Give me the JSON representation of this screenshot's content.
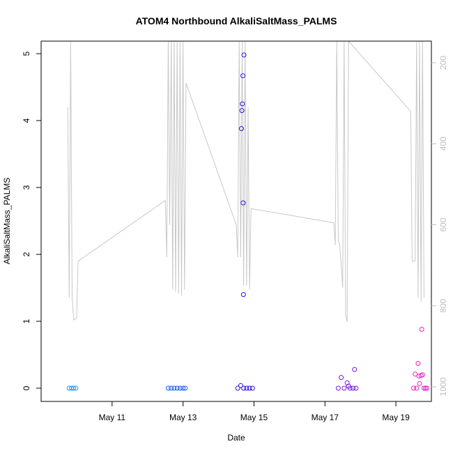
{
  "chart_data": {
    "type": "scatter",
    "title": "ATOM4 Northbound AlkaliSaltMass_PALMS",
    "xlabel": "Date",
    "ylabel": "AlkaliSaltMass_PALMS",
    "xlim": [
      "2017-05-09",
      "2017-05-20"
    ],
    "ylim": [
      0,
      5
    ],
    "x_ticks": [
      {
        "date": "2017-05-11",
        "label": "May 11"
      },
      {
        "date": "2017-05-13",
        "label": "May 13"
      },
      {
        "date": "2017-05-15",
        "label": "May 15"
      },
      {
        "date": "2017-05-17",
        "label": "May 17"
      },
      {
        "date": "2017-05-19",
        "label": "May 19"
      }
    ],
    "y_ticks": [
      0,
      1,
      2,
      3,
      4,
      5
    ],
    "y2_ticks": [
      200,
      400,
      600,
      800,
      1000
    ],
    "y2_reversed": true,
    "y2_color": "#bdbdbd",
    "marker": "open-circle",
    "series": [
      {
        "color": "#1e9bf0",
        "points": [
          {
            "t": "2017-05-09T19:00",
            "y": 0
          },
          {
            "t": "2017-05-09T20:30",
            "y": 0
          },
          {
            "t": "2017-05-09T22:00",
            "y": 0
          },
          {
            "t": "2017-05-09T23:30",
            "y": 0
          }
        ]
      },
      {
        "color": "#1a5cf5",
        "points": [
          {
            "t": "2017-05-12T14:00",
            "y": 0
          },
          {
            "t": "2017-05-12T16:00",
            "y": 0
          },
          {
            "t": "2017-05-12T18:00",
            "y": 0
          },
          {
            "t": "2017-05-12T20:00",
            "y": 0
          },
          {
            "t": "2017-05-12T22:00",
            "y": 0
          },
          {
            "t": "2017-05-13T00:00",
            "y": 0
          },
          {
            "t": "2017-05-13T01:30",
            "y": 0
          }
        ]
      },
      {
        "color": "#2f10e6",
        "points": [
          {
            "t": "2017-05-14T13:00",
            "y": 0
          },
          {
            "t": "2017-05-14T15:00",
            "y": 0.04
          },
          {
            "t": "2017-05-14T17:00",
            "y": 0
          },
          {
            "t": "2017-05-14T19:00",
            "y": 0
          },
          {
            "t": "2017-05-14T21:00",
            "y": 0
          },
          {
            "t": "2017-05-14T23:00",
            "y": 0
          },
          {
            "t": "2017-05-14T15:30",
            "y": 3.88
          },
          {
            "t": "2017-05-14T15:50",
            "y": 4.15
          },
          {
            "t": "2017-05-14T16:10",
            "y": 4.25
          },
          {
            "t": "2017-05-14T16:30",
            "y": 4.67
          },
          {
            "t": "2017-05-14T16:40",
            "y": 2.77
          },
          {
            "t": "2017-05-14T17:10",
            "y": 4.98
          },
          {
            "t": "2017-05-14T16:50",
            "y": 1.4
          }
        ]
      },
      {
        "color": "#7a18d8",
        "points": [
          {
            "t": "2017-05-17T09:00",
            "y": 0
          },
          {
            "t": "2017-05-17T11:00",
            "y": 0.16
          },
          {
            "t": "2017-05-17T13:00",
            "y": 0
          },
          {
            "t": "2017-05-17T15:00",
            "y": 0.08
          },
          {
            "t": "2017-05-17T16:00",
            "y": 0.03
          },
          {
            "t": "2017-05-17T17:00",
            "y": 0
          },
          {
            "t": "2017-05-17T19:00",
            "y": 0
          },
          {
            "t": "2017-05-17T20:00",
            "y": 0.28
          },
          {
            "t": "2017-05-17T21:00",
            "y": 0
          }
        ]
      },
      {
        "color": "#e81ec8",
        "points": [
          {
            "t": "2017-05-19T12:00",
            "y": 0
          },
          {
            "t": "2017-05-19T13:00",
            "y": 0.21
          },
          {
            "t": "2017-05-19T14:00",
            "y": 0
          },
          {
            "t": "2017-05-19T15:00",
            "y": 0.37
          },
          {
            "t": "2017-05-19T15:30",
            "y": 0.18
          },
          {
            "t": "2017-05-19T16:00",
            "y": 0.07
          },
          {
            "t": "2017-05-19T17:00",
            "y": 0.19
          },
          {
            "t": "2017-05-19T17:30",
            "y": 0.88
          },
          {
            "t": "2017-05-19T18:00",
            "y": 0.2
          },
          {
            "t": "2017-05-19T19:00",
            "y": 0
          },
          {
            "t": "2017-05-19T20:00",
            "y": 0
          },
          {
            "t": "2017-05-19T21:00",
            "y": 0
          }
        ]
      }
    ],
    "altitude_line": {
      "color": "#c8c8c8",
      "axis": "right",
      "points": [
        {
          "t": "2017-05-09T18:00",
          "y": 310
        },
        {
          "t": "2017-05-09T19:00",
          "y": 780
        },
        {
          "t": "2017-05-09T20:00",
          "y": 20
        },
        {
          "t": "2017-05-09T21:00",
          "y": 780
        },
        {
          "t": "2017-05-09T22:00",
          "y": 835
        },
        {
          "t": "2017-05-10T00:00",
          "y": 830
        },
        {
          "t": "2017-05-10T01:00",
          "y": 690
        },
        {
          "t": "2017-05-12T12:00",
          "y": 540
        },
        {
          "t": "2017-05-12T13:00",
          "y": 680
        },
        {
          "t": "2017-05-12T14:00",
          "y": 0
        },
        {
          "t": "2017-05-12T15:00",
          "y": 600
        },
        {
          "t": "2017-05-12T16:00",
          "y": 0
        },
        {
          "t": "2017-05-12T17:00",
          "y": 760
        },
        {
          "t": "2017-05-12T18:00",
          "y": 0
        },
        {
          "t": "2017-05-12T19:00",
          "y": 765
        },
        {
          "t": "2017-05-12T20:00",
          "y": 0
        },
        {
          "t": "2017-05-12T21:00",
          "y": 770
        },
        {
          "t": "2017-05-12T22:00",
          "y": 0
        },
        {
          "t": "2017-05-12T23:00",
          "y": 775
        },
        {
          "t": "2017-05-13T00:00",
          "y": 0
        },
        {
          "t": "2017-05-13T01:00",
          "y": 760
        },
        {
          "t": "2017-05-13T02:00",
          "y": 250
        },
        {
          "t": "2017-05-14T12:00",
          "y": 600
        },
        {
          "t": "2017-05-14T13:00",
          "y": 680
        },
        {
          "t": "2017-05-14T14:00",
          "y": 0
        },
        {
          "t": "2017-05-14T15:00",
          "y": 680
        },
        {
          "t": "2017-05-14T16:00",
          "y": 0
        },
        {
          "t": "2017-05-14T17:00",
          "y": 750
        },
        {
          "t": "2017-05-14T18:00",
          "y": 0
        },
        {
          "t": "2017-05-14T19:00",
          "y": 750
        },
        {
          "t": "2017-05-14T20:00",
          "y": 310
        },
        {
          "t": "2017-05-14T21:00",
          "y": 760
        },
        {
          "t": "2017-05-14T22:00",
          "y": 560
        },
        {
          "t": "2017-05-17T06:00",
          "y": 595
        },
        {
          "t": "2017-05-17T07:00",
          "y": 650
        },
        {
          "t": "2017-05-17T08:00",
          "y": 0
        },
        {
          "t": "2017-05-17T09:00",
          "y": 640
        },
        {
          "t": "2017-05-17T10:00",
          "y": 650
        },
        {
          "t": "2017-05-17T11:00",
          "y": 700
        },
        {
          "t": "2017-05-17T12:00",
          "y": 755
        },
        {
          "t": "2017-05-17T13:00",
          "y": 0
        },
        {
          "t": "2017-05-17T14:00",
          "y": 825
        },
        {
          "t": "2017-05-17T15:00",
          "y": 840
        },
        {
          "t": "2017-05-17T16:00",
          "y": 0
        },
        {
          "t": "2017-05-19T10:00",
          "y": 320
        },
        {
          "t": "2017-05-19T11:00",
          "y": 690
        },
        {
          "t": "2017-05-19T13:00",
          "y": 690
        },
        {
          "t": "2017-05-19T14:00",
          "y": 0
        },
        {
          "t": "2017-05-19T15:00",
          "y": 780
        },
        {
          "t": "2017-05-19T16:00",
          "y": 0
        },
        {
          "t": "2017-05-19T17:00",
          "y": 790
        },
        {
          "t": "2017-05-19T18:00",
          "y": 0
        },
        {
          "t": "2017-05-19T19:00",
          "y": 780
        }
      ]
    }
  }
}
